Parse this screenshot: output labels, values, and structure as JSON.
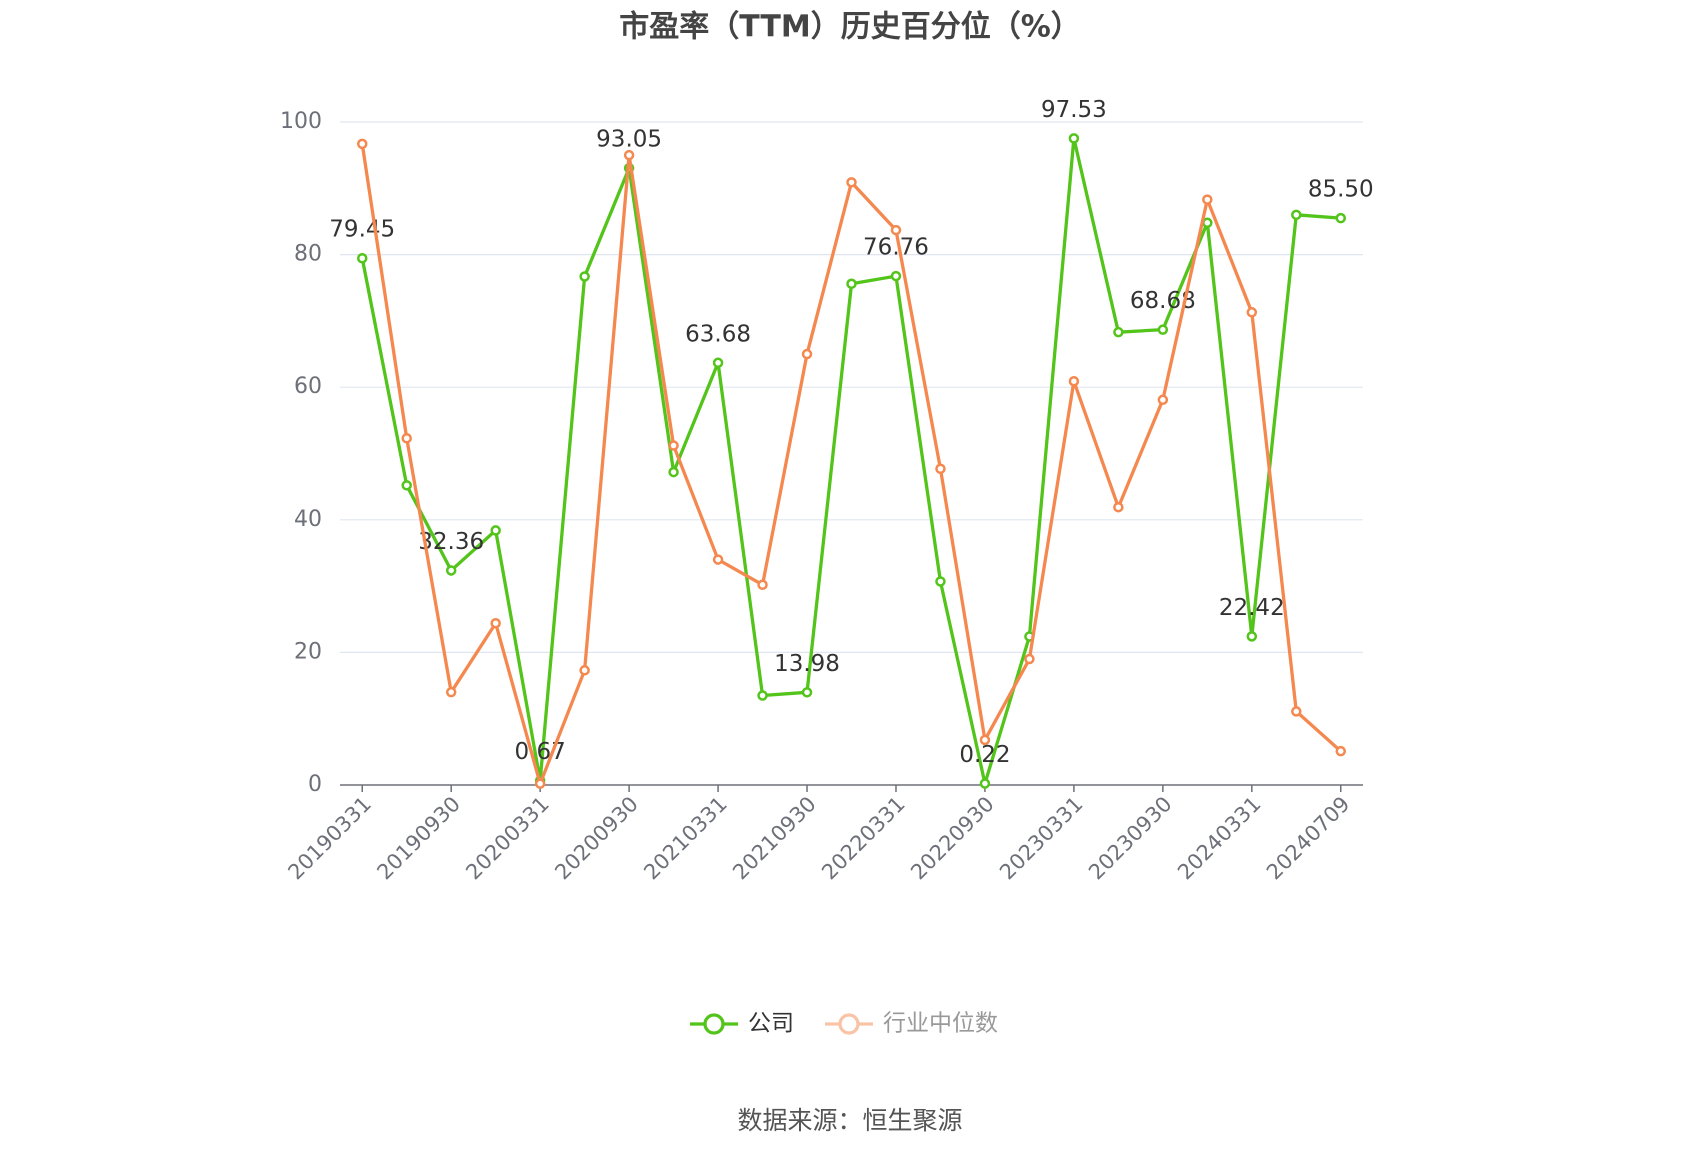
{
  "chart_data": {
    "type": "line",
    "title": "市盈率（TTM）历史百分位（%）",
    "categories": [
      "20190331",
      null,
      "20190930",
      null,
      "20200331",
      null,
      "20200930",
      null,
      "20210331",
      null,
      "20210930",
      null,
      "20220331",
      null,
      "20220930",
      null,
      "20230331",
      null,
      "20230930",
      null,
      "20240331",
      null,
      "20240709"
    ],
    "series": [
      {
        "name": "公司",
        "color": "#52c41a",
        "values": [
          79.45,
          45.2,
          32.36,
          38.4,
          0.67,
          76.7,
          93.05,
          47.2,
          63.68,
          13.5,
          13.98,
          75.6,
          76.76,
          30.7,
          0.22,
          22.4,
          97.53,
          68.3,
          68.68,
          84.8,
          22.42,
          86.0,
          85.5
        ],
        "value_labels": [
          "79.45",
          null,
          "32.36",
          null,
          "0.67",
          null,
          "93.05",
          null,
          "63.68",
          null,
          "13.98",
          null,
          "76.76",
          null,
          "0.22",
          null,
          "97.53",
          null,
          "68.68",
          null,
          "22.42",
          null,
          "85.50"
        ]
      },
      {
        "name": "行业中位数",
        "color": "#f4884f",
        "values": [
          96.7,
          52.3,
          14.0,
          24.4,
          0.2,
          17.3,
          95.0,
          51.2,
          34.0,
          30.2,
          65.0,
          90.9,
          83.7,
          47.7,
          6.8,
          19.0,
          60.9,
          41.9,
          58.1,
          88.3,
          71.3,
          11.1,
          5.1
        ]
      }
    ],
    "ylim": [
      0,
      100
    ],
    "yticks": [
      0,
      20,
      40,
      60,
      80,
      100
    ],
    "grid": true,
    "legend": "bottom",
    "source": "数据来源：恒生聚源"
  }
}
